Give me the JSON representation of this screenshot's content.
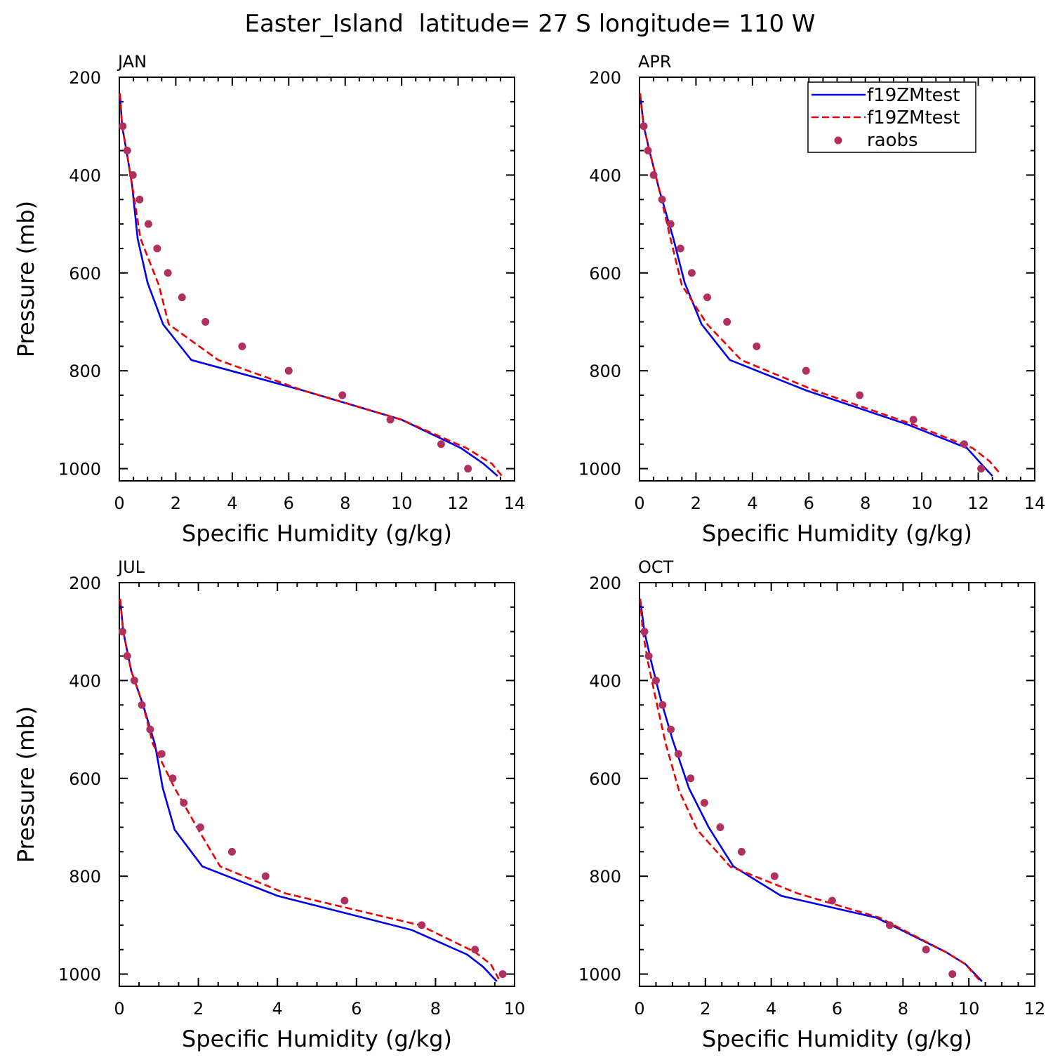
{
  "title": "Easter_Island  latitude= 27 S longitude= 110 W",
  "colors": {
    "model_solid": "#0000ee",
    "model_dashed": "#ee0000",
    "raobs": "#b03060",
    "axis": "#000000"
  },
  "legend": {
    "entries": [
      {
        "label": "f19ZMtest",
        "style": "solid"
      },
      {
        "label": "f19ZMtest",
        "style": "dashed"
      },
      {
        "label": "raobs",
        "style": "dot"
      }
    ]
  },
  "chart_data": [
    {
      "type": "line",
      "panel": "JAN",
      "title": "JAN",
      "xlabel": "Specific Humidity (g/kg)",
      "ylabel": "Pressure (mb)",
      "xlim": [
        0,
        14
      ],
      "xticks": [
        0,
        2,
        4,
        6,
        8,
        10,
        12,
        14
      ],
      "ylim": [
        200,
        1025
      ],
      "yticks": [
        200,
        400,
        600,
        800,
        1000
      ],
      "series": [
        {
          "name": "f19ZMtest",
          "style": "solid",
          "x": [
            0.02,
            0.1,
            0.25,
            0.45,
            0.65,
            1.0,
            1.55,
            2.55,
            6.5,
            10.0,
            12.1,
            12.9,
            13.4
          ],
          "y": [
            233,
            300,
            350,
            420,
            530,
            620,
            705,
            778,
            840,
            900,
            958,
            990,
            1015
          ]
        },
        {
          "name": "f19ZMtest",
          "style": "dashed",
          "x": [
            0.02,
            0.1,
            0.25,
            0.45,
            0.75,
            1.4,
            1.75,
            3.5,
            6.5,
            10.0,
            12.3,
            13.2,
            13.55
          ],
          "y": [
            233,
            300,
            350,
            420,
            530,
            625,
            705,
            778,
            840,
            900,
            958,
            990,
            1015
          ]
        },
        {
          "name": "raobs",
          "style": "dot",
          "x": [
            0.12,
            0.28,
            0.48,
            0.72,
            1.03,
            1.34,
            1.72,
            2.22,
            3.05,
            4.35,
            6.0,
            7.9,
            9.6,
            11.4,
            12.35
          ],
          "y": [
            300,
            350,
            400,
            450,
            500,
            550,
            600,
            650,
            700,
            750,
            800,
            850,
            900,
            950,
            1000
          ]
        }
      ]
    },
    {
      "type": "line",
      "panel": "APR",
      "title": "APR",
      "xlabel": "Specific Humidity (g/kg)",
      "ylabel": "",
      "xlim": [
        0,
        14
      ],
      "xticks": [
        0,
        2,
        4,
        6,
        8,
        10,
        12,
        14
      ],
      "ylim": [
        200,
        1025
      ],
      "yticks": [
        200,
        400,
        600,
        800,
        1000
      ],
      "series": [
        {
          "name": "f19ZMtest",
          "style": "solid",
          "x": [
            0.02,
            0.15,
            0.35,
            0.7,
            1.2,
            1.6,
            2.2,
            3.2,
            5.9,
            9.5,
            11.6,
            12.1,
            12.5
          ],
          "y": [
            233,
            300,
            350,
            430,
            530,
            620,
            705,
            778,
            840,
            910,
            958,
            990,
            1015
          ]
        },
        {
          "name": "f19ZMtest",
          "style": "dashed",
          "x": [
            0.02,
            0.15,
            0.35,
            0.7,
            1.1,
            1.5,
            2.4,
            3.6,
            6.2,
            9.7,
            11.8,
            12.4,
            12.8
          ],
          "y": [
            233,
            300,
            350,
            430,
            530,
            625,
            705,
            778,
            840,
            910,
            958,
            985,
            1012
          ]
        },
        {
          "name": "raobs",
          "style": "dot",
          "x": [
            0.15,
            0.3,
            0.5,
            0.8,
            1.1,
            1.45,
            1.85,
            2.4,
            3.1,
            4.15,
            5.9,
            7.8,
            9.7,
            11.5,
            12.1
          ],
          "y": [
            300,
            350,
            400,
            450,
            500,
            550,
            600,
            650,
            700,
            750,
            800,
            850,
            900,
            950,
            1000
          ]
        }
      ]
    },
    {
      "type": "line",
      "panel": "JUL",
      "title": "JUL",
      "xlabel": "Specific Humidity (g/kg)",
      "ylabel": "Pressure (mb)",
      "xlim": [
        0,
        10
      ],
      "xticks": [
        0,
        2,
        4,
        6,
        8,
        10
      ],
      "ylim": [
        200,
        1025
      ],
      "yticks": [
        200,
        400,
        600,
        800,
        1000
      ],
      "series": [
        {
          "name": "f19ZMtest",
          "style": "solid",
          "x": [
            0.02,
            0.1,
            0.3,
            0.6,
            0.9,
            1.1,
            1.4,
            2.1,
            4.0,
            7.4,
            8.8,
            9.2,
            9.55
          ],
          "y": [
            233,
            300,
            380,
            450,
            530,
            620,
            705,
            780,
            840,
            910,
            960,
            985,
            1015
          ]
        },
        {
          "name": "f19ZMtest",
          "style": "dashed",
          "x": [
            0.02,
            0.1,
            0.3,
            0.6,
            0.85,
            1.4,
            2.0,
            2.55,
            4.2,
            7.6,
            9.0,
            9.4,
            9.6
          ],
          "y": [
            233,
            300,
            380,
            450,
            530,
            620,
            705,
            780,
            835,
            900,
            955,
            980,
            1010
          ]
        },
        {
          "name": "raobs",
          "style": "dot",
          "x": [
            0.08,
            0.2,
            0.38,
            0.57,
            0.78,
            1.07,
            1.35,
            1.63,
            2.05,
            2.85,
            3.7,
            5.7,
            7.65,
            9.0,
            9.7
          ],
          "y": [
            300,
            350,
            400,
            450,
            500,
            550,
            600,
            650,
            700,
            750,
            800,
            850,
            900,
            950,
            1000
          ]
        }
      ]
    },
    {
      "type": "line",
      "panel": "OCT",
      "title": "OCT",
      "xlabel": "Specific Humidity (g/kg)",
      "ylabel": "",
      "xlim": [
        0,
        12
      ],
      "xticks": [
        0,
        2,
        4,
        6,
        8,
        10,
        12
      ],
      "ylim": [
        200,
        1025
      ],
      "yticks": [
        200,
        400,
        600,
        800,
        1000
      ],
      "series": [
        {
          "name": "f19ZMtest",
          "style": "solid",
          "x": [
            0.02,
            0.15,
            0.35,
            0.65,
            1.0,
            1.5,
            2.1,
            2.85,
            4.3,
            7.2,
            9.3,
            9.9,
            10.4
          ],
          "y": [
            233,
            300,
            360,
            440,
            520,
            620,
            700,
            780,
            840,
            885,
            955,
            980,
            1015
          ]
        },
        {
          "name": "f19ZMtest",
          "style": "dashed",
          "x": [
            0.02,
            0.1,
            0.25,
            0.5,
            0.8,
            1.2,
            1.75,
            2.75,
            4.8,
            7.3,
            9.3,
            9.9,
            10.35
          ],
          "y": [
            233,
            300,
            360,
            440,
            530,
            625,
            705,
            780,
            835,
            885,
            955,
            980,
            1015
          ]
        },
        {
          "name": "raobs",
          "style": "dot",
          "x": [
            0.15,
            0.28,
            0.5,
            0.7,
            0.95,
            1.18,
            1.55,
            1.97,
            2.45,
            3.1,
            4.1,
            5.85,
            7.6,
            8.7,
            9.5
          ],
          "y": [
            300,
            350,
            400,
            450,
            500,
            550,
            600,
            650,
            700,
            750,
            800,
            850,
            900,
            950,
            1000
          ]
        }
      ]
    }
  ]
}
